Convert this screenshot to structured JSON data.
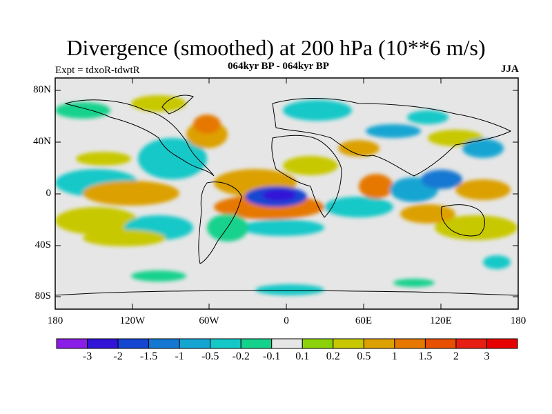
{
  "title": "Divergence (smoothed) at 200 hPa (10**6 m/s)",
  "experiment": "Expt = tdxoR-tdwtR",
  "period": "064kyr BP - 064kyr BP",
  "season": "JJA",
  "lat_ticks": [
    "80N",
    "40N",
    "0",
    "40S",
    "80S"
  ],
  "lon_ticks": [
    "180",
    "120W",
    "60W",
    "0",
    "60E",
    "120E",
    "180"
  ],
  "colorbar": {
    "labels": [
      "-3",
      "-2",
      "-1.5",
      "-1",
      "-0.5",
      "-0.2",
      "-0.1",
      "0.1",
      "0.2",
      "0.5",
      "1",
      "1.5",
      "2",
      "3"
    ],
    "colors": [
      "#8a1ee6",
      "#3214d8",
      "#1446d2",
      "#1478d2",
      "#14a5d2",
      "#14c8c8",
      "#14d28c",
      "#e6e6e6",
      "#8cd20a",
      "#c8c800",
      "#dca000",
      "#e67800",
      "#e65000",
      "#e61e14",
      "#e60000"
    ]
  }
}
